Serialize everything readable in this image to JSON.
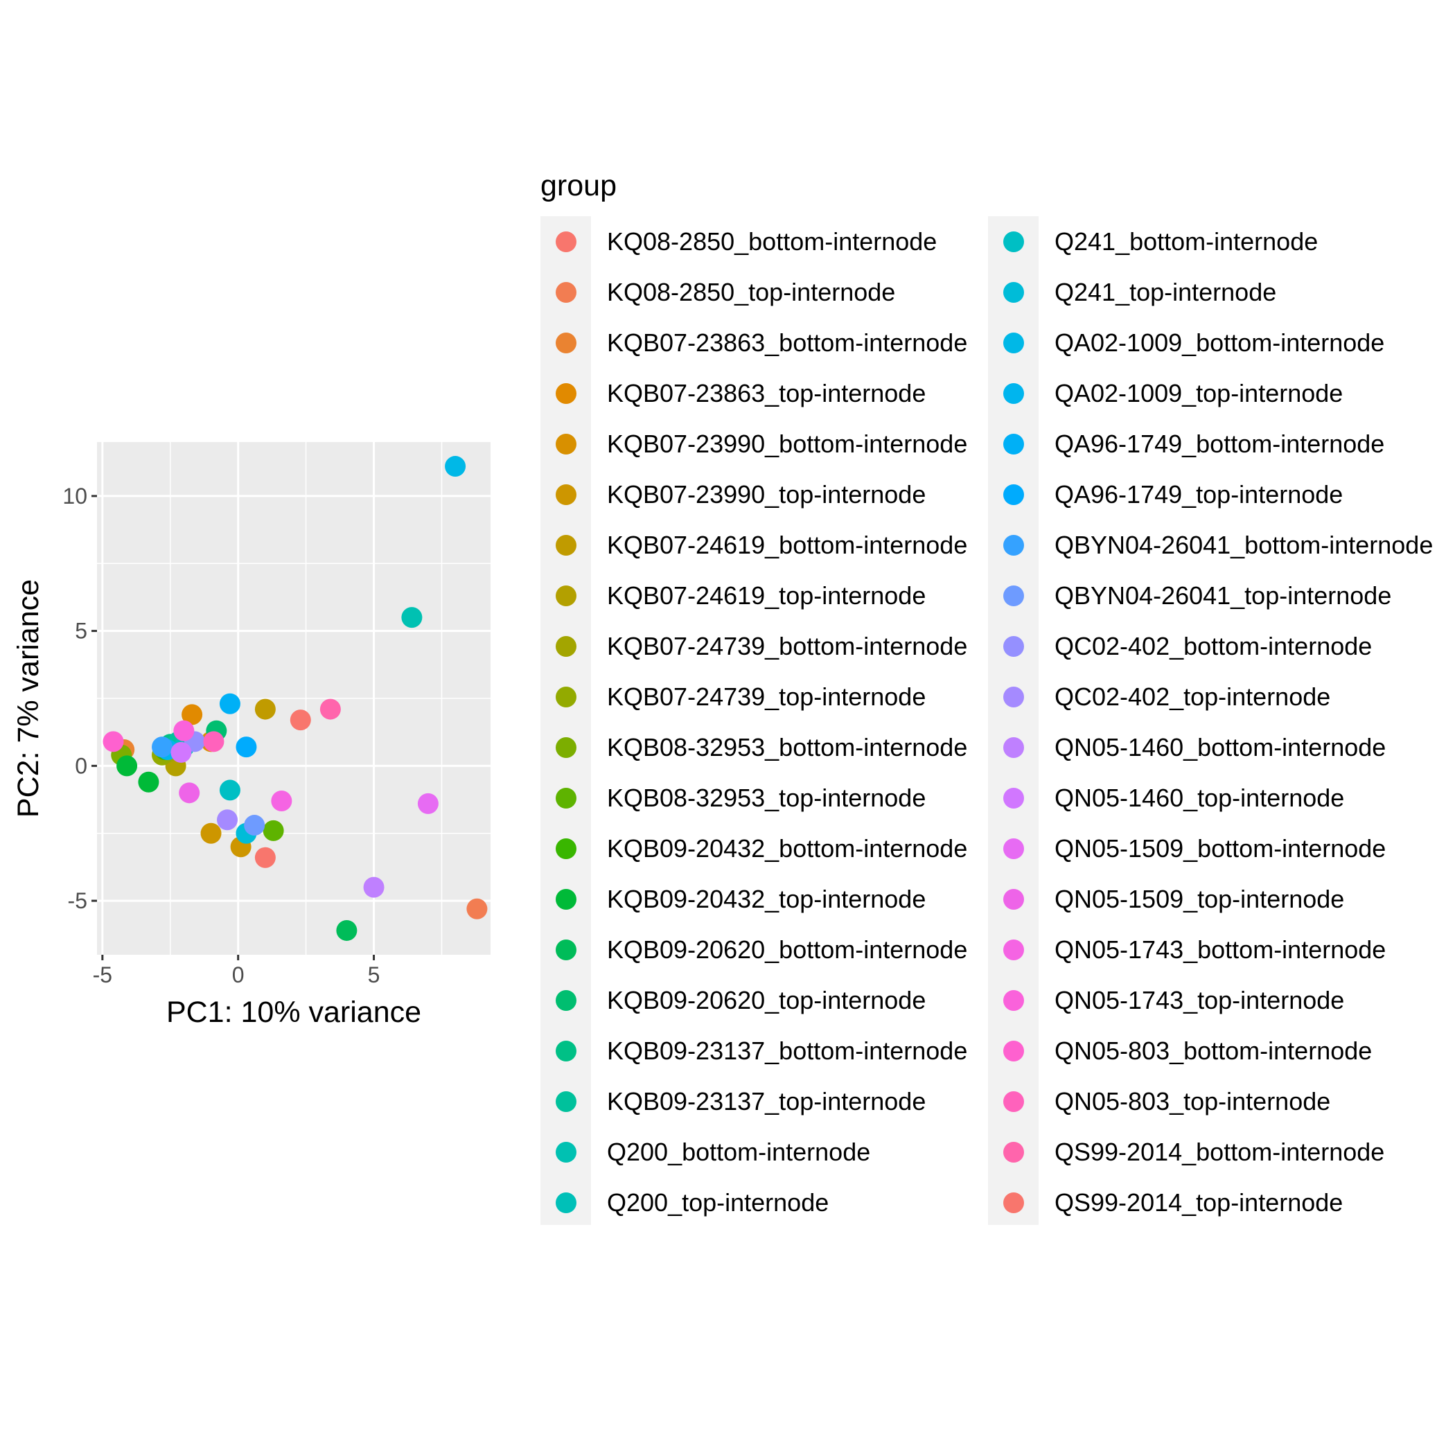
{
  "chart_data": {
    "type": "scatter",
    "title": "",
    "xlabel": "PC1: 10% variance",
    "ylabel": "PC2: 7% variance",
    "xlim": [
      -5.2,
      9.3
    ],
    "ylim": [
      -7.0,
      12.0
    ],
    "x_ticks": [
      -5,
      0,
      5
    ],
    "x_tick_labels": [
      "-5",
      "0",
      "5"
    ],
    "y_ticks": [
      -5,
      0,
      5,
      10
    ],
    "y_tick_labels": [
      "-5",
      "0",
      "5",
      "10"
    ],
    "grid": true,
    "legend": {
      "title": "group",
      "placement": "right",
      "columns": 2
    },
    "series": [
      {
        "name": "KQ08-2850_bottom-internode",
        "color": "#F8766D",
        "points": [
          [
            2.3,
            1.7
          ]
        ]
      },
      {
        "name": "KQ08-2850_top-internode",
        "color": "#F27D52",
        "points": [
          [
            8.8,
            -5.3
          ]
        ]
      },
      {
        "name": "KQB07-23863_bottom-internode",
        "color": "#EA8331",
        "points": [
          [
            -4.2,
            0.6
          ]
        ]
      },
      {
        "name": "KQB07-23863_top-internode",
        "color": "#E18A00",
        "points": [
          [
            -1.7,
            1.9
          ]
        ]
      },
      {
        "name": "KQB07-23990_bottom-internode",
        "color": "#D89000",
        "points": [
          [
            -1.0,
            0.9
          ]
        ]
      },
      {
        "name": "KQB07-23990_top-internode",
        "color": "#CD9600",
        "points": [
          [
            -1.0,
            -2.5
          ],
          [
            0.1,
            -3.0
          ]
        ]
      },
      {
        "name": "KQB07-24619_bottom-internode",
        "color": "#C09B00",
        "points": [
          [
            1.0,
            2.1
          ]
        ]
      },
      {
        "name": "KQB07-24619_top-internode",
        "color": "#B3A000",
        "points": [
          [
            -2.3,
            0.0
          ]
        ]
      },
      {
        "name": "KQB07-24739_bottom-internode",
        "color": "#A3A500",
        "points": [
          [
            -2.6,
            0.5
          ]
        ]
      },
      {
        "name": "KQB07-24739_top-internode",
        "color": "#93AA00",
        "points": [
          [
            -2.8,
            0.4
          ]
        ]
      },
      {
        "name": "KQB08-32953_bottom-internode",
        "color": "#7CAE00",
        "points": [
          [
            -4.3,
            0.4
          ]
        ]
      },
      {
        "name": "KQB08-32953_top-internode",
        "color": "#5EB300",
        "points": [
          [
            1.3,
            -2.4
          ]
        ]
      },
      {
        "name": "KQB09-20432_bottom-internode",
        "color": "#39B600",
        "points": [
          [
            -2.7,
            0.6
          ]
        ]
      },
      {
        "name": "KQB09-20432_top-internode",
        "color": "#00BA38",
        "points": [
          [
            -4.1,
            0.0
          ],
          [
            -3.3,
            -0.6
          ]
        ]
      },
      {
        "name": "KQB09-20620_bottom-internode",
        "color": "#00BC59",
        "points": [
          [
            4.0,
            -6.1
          ]
        ]
      },
      {
        "name": "KQB09-20620_top-internode",
        "color": "#00BE70",
        "points": [
          [
            -0.8,
            1.3
          ]
        ]
      },
      {
        "name": "KQB09-23137_bottom-internode",
        "color": "#00C086",
        "points": [
          [
            -2.5,
            0.8
          ]
        ]
      },
      {
        "name": "KQB09-23137_top-internode",
        "color": "#00C19C",
        "points": [
          [
            -2.2,
            0.9
          ]
        ]
      },
      {
        "name": "Q200_bottom-internode",
        "color": "#00C1B2",
        "points": [
          [
            6.4,
            5.5
          ]
        ]
      },
      {
        "name": "Q200_top-internode",
        "color": "#00C0B8",
        "points": [
          [
            -2.0,
            0.7
          ]
        ]
      },
      {
        "name": "Q241_bottom-internode",
        "color": "#00BFC4",
        "points": [
          [
            -0.3,
            -0.9
          ]
        ]
      },
      {
        "name": "Q241_top-internode",
        "color": "#00BCD8",
        "points": [
          [
            0.3,
            -2.5
          ]
        ]
      },
      {
        "name": "QA02-1009_bottom-internode",
        "color": "#00B8E7",
        "points": [
          [
            8.0,
            11.1
          ]
        ]
      },
      {
        "name": "QA02-1009_top-internode",
        "color": "#00B5EE",
        "points": [
          [
            -2.6,
            0.6
          ]
        ]
      },
      {
        "name": "QA96-1749_bottom-internode",
        "color": "#00B0F6",
        "points": [
          [
            -0.3,
            2.3
          ]
        ]
      },
      {
        "name": "QA96-1749_top-internode",
        "color": "#00ABFD",
        "points": [
          [
            0.3,
            0.7
          ]
        ]
      },
      {
        "name": "QBYN04-26041_bottom-internode",
        "color": "#35A2FF",
        "points": [
          [
            -2.8,
            0.7
          ]
        ]
      },
      {
        "name": "QBYN04-26041_top-internode",
        "color": "#6E9BFF",
        "points": [
          [
            0.6,
            -2.2
          ]
        ]
      },
      {
        "name": "QC02-402_bottom-internode",
        "color": "#9590FF",
        "points": [
          [
            -1.6,
            0.9
          ]
        ]
      },
      {
        "name": "QC02-402_top-internode",
        "color": "#A58AFF",
        "points": [
          [
            -0.4,
            -2.0
          ]
        ]
      },
      {
        "name": "QN05-1460_bottom-internode",
        "color": "#BF80FF",
        "points": [
          [
            5.0,
            -4.5
          ]
        ]
      },
      {
        "name": "QN05-1460_top-internode",
        "color": "#D177FF",
        "points": [
          [
            -2.1,
            0.5
          ]
        ]
      },
      {
        "name": "QN05-1509_bottom-internode",
        "color": "#E76BF3",
        "points": [
          [
            7.0,
            -1.4
          ]
        ]
      },
      {
        "name": "QN05-1509_top-internode",
        "color": "#EE64E8",
        "points": [
          [
            -1.8,
            -1.0
          ]
        ]
      },
      {
        "name": "QN05-1743_bottom-internode",
        "color": "#F564E3",
        "points": [
          [
            1.6,
            -1.3
          ]
        ]
      },
      {
        "name": "QN05-1743_top-internode",
        "color": "#FA62DB",
        "points": [
          [
            -2.0,
            1.3
          ]
        ]
      },
      {
        "name": "QN05-803_bottom-internode",
        "color": "#FE61CF",
        "points": [
          [
            -4.6,
            0.9
          ]
        ]
      },
      {
        "name": "QN05-803_top-internode",
        "color": "#FF62BC",
        "points": [
          [
            -0.9,
            0.9
          ]
        ]
      },
      {
        "name": "QS99-2014_bottom-internode",
        "color": "#FF65AC",
        "points": [
          [
            3.4,
            2.1
          ]
        ]
      },
      {
        "name": "QS99-2014_top-internode",
        "color": "#F8766D",
        "points": [
          [
            1.0,
            -3.4
          ]
        ]
      }
    ]
  }
}
